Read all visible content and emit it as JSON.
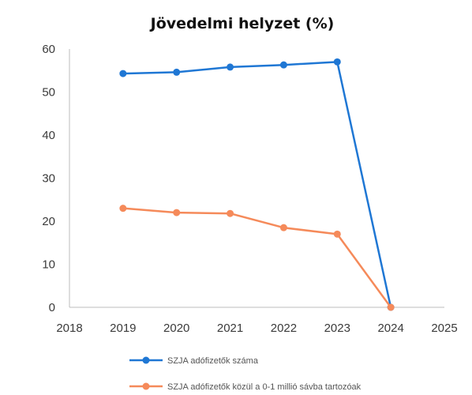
{
  "chart_data": {
    "type": "line",
    "title": "Jövedelmi helyzet (%)",
    "xlabel": "",
    "ylabel": "",
    "xlim": [
      2018,
      2025
    ],
    "ylim": [
      0,
      60
    ],
    "x_ticks": [
      "2018",
      "2019",
      "2020",
      "2021",
      "2022",
      "2023",
      "2024",
      "2025"
    ],
    "y_ticks": [
      "0",
      "10",
      "20",
      "30",
      "40",
      "50",
      "60"
    ],
    "grid": false,
    "legend_position": "bottom",
    "series": [
      {
        "name": "SZJA adófizetők száma",
        "color": "#1f77d4",
        "x": [
          2019,
          2020,
          2021,
          2022,
          2023,
          2024
        ],
        "y": [
          54.3,
          54.6,
          55.8,
          56.3,
          57.0,
          0
        ]
      },
      {
        "name": "SZJA adófizetők közül a 0-1 millió sávba tartozóak",
        "color": "#f58a5a",
        "x": [
          2019,
          2020,
          2021,
          2022,
          2023,
          2024
        ],
        "y": [
          23.0,
          22.0,
          21.8,
          18.5,
          17.0,
          0
        ]
      }
    ]
  }
}
